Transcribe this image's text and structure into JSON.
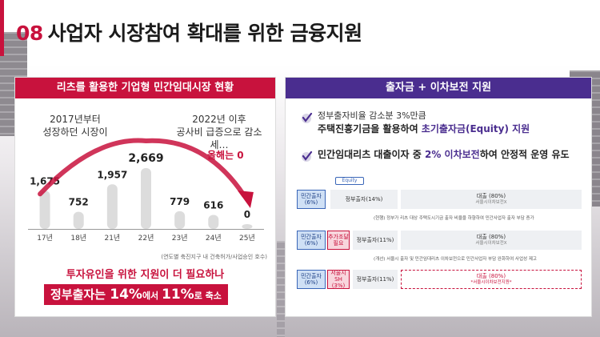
{
  "header": {
    "number": "08",
    "title": "사업자 시장참여 확대를 위한 금융지원"
  },
  "left_panel": {
    "title": "리츠를 활용한 기업형 민간임대시장 현황",
    "annotation_left": [
      "2017년부터",
      "성장하던 시장이"
    ],
    "annotation_right": [
      "2022년 이후",
      "공사비 급증으로 감소세…"
    ],
    "annotation_zero": "올해는 0",
    "note": "(연도별 축진지구 내 건축허가/사업승인 호수)",
    "message_1": "투자유인을 위한 지원이 더 필요하나",
    "message_2": {
      "a": "정부출자는 ",
      "b": "14%",
      "c": "에서 ",
      "d": "11%",
      "e": "로 축소"
    }
  },
  "chart_data": {
    "type": "bar",
    "categories": [
      "17년",
      "18년",
      "21년",
      "22년",
      "23년",
      "24년",
      "25년"
    ],
    "values": [
      1675,
      752,
      1957,
      2669,
      779,
      616,
      0
    ],
    "value_labels": [
      "1,675",
      "752",
      "1,957",
      "2,669",
      "779",
      "616",
      "0"
    ],
    "title": "",
    "xlabel": "",
    "ylabel": "",
    "ylim": [
      0,
      2669
    ],
    "grid": false,
    "legend": "none",
    "colors": {
      "bar": "#dcdcdc",
      "value_text": "#222222",
      "trend_arrow": "#c8123d"
    }
  },
  "right_panel": {
    "title": "출자금 + 이차보전 지원",
    "bullet_1_line_1": "정부출자비율 감소분 3%만큼",
    "bullet_1_line_2": {
      "a": "주택진흥기금을 활용하여 ",
      "b": "초기출자금(Equity) 지원"
    },
    "bullet_2": {
      "a": "민간임대리츠 대출이자 중 ",
      "b": "2% 이차보전",
      "c": "하여 안정적 운영 유도"
    },
    "equity_label": "Equity",
    "rows": [
      {
        "cells": [
          {
            "type": "blue",
            "line1": "민간출자",
            "line2": "(6%)"
          },
          {
            "type": "grey",
            "line1": "정부출자(14%)",
            "line2": ""
          },
          {
            "type": "grey",
            "line1": "대출 (80%)",
            "line2": "서울시이차보전X"
          }
        ],
        "note": "(현행) 정부가 리츠 대상 주택도시기금 출자 비율을 하향하여 민간사업자 출자 부담 증가"
      },
      {
        "cells": [
          {
            "type": "blue",
            "line1": "민간출자",
            "line2": "(6%)"
          },
          {
            "type": "pink",
            "line1": "추가조달",
            "line2": "필요"
          },
          {
            "type": "grey",
            "line1": "정부출자(11%)",
            "line2": ""
          },
          {
            "type": "grey",
            "line1": "대출 (80%)",
            "line2": "서울시이차보전X"
          }
        ],
        "note": "(개선) 서울시 출자 및 민간임대리츠 이차보전으로 민간사업자 부담 완화하여 사업성 제고"
      },
      {
        "cells": [
          {
            "type": "blue",
            "line1": "민간출자",
            "line2": "(6%)"
          },
          {
            "type": "pink",
            "line1": "서울시 SH",
            "line2": "(3%)"
          },
          {
            "type": "grey",
            "line1": "정부출자(11%)",
            "line2": ""
          },
          {
            "type": "dash",
            "line1": "대출 (80%)",
            "line2": "*서울시이차보전지원*"
          }
        ],
        "note": ""
      }
    ]
  }
}
